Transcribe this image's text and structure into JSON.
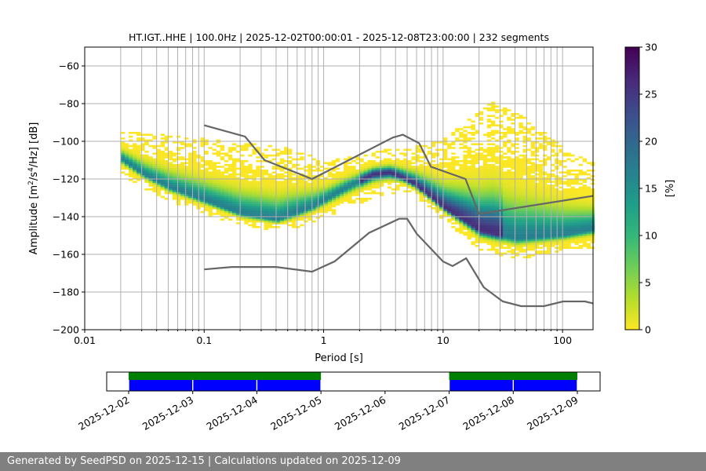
{
  "chart_data": {
    "type": "heatmap",
    "title": "HT.IGT..HHE | 100.0Hz | 2025-12-02T00:00:01 - 2025-12-08T23:00:00 | 232 segments",
    "xlabel": "Period [s]",
    "ylabel": "Amplitude [m²/s⁴/Hz] [dB]",
    "xscale": "log",
    "xlim": [
      0.01,
      180
    ],
    "ylim": [
      -200,
      -50
    ],
    "xticks": [
      {
        "v": 0.01,
        "label": "0.01"
      },
      {
        "v": 0.1,
        "label": "0.1"
      },
      {
        "v": 1,
        "label": "1"
      },
      {
        "v": 10,
        "label": "10"
      },
      {
        "v": 100,
        "label": "100"
      }
    ],
    "yticks": [
      -200,
      -180,
      -160,
      -140,
      -120,
      -100,
      -80,
      -60
    ],
    "grid": true,
    "colorbar": {
      "label": "[%]",
      "range": [
        0,
        30
      ],
      "ticks": [
        0,
        5,
        10,
        15,
        20,
        25,
        30
      ],
      "colormap": "viridis_r"
    },
    "density_mode": [
      [
        0.02,
        -110
      ],
      [
        0.03,
        -118
      ],
      [
        0.05,
        -125
      ],
      [
        0.1,
        -132
      ],
      [
        0.2,
        -139
      ],
      [
        0.4,
        -142
      ],
      [
        0.8,
        -135
      ],
      [
        1.5,
        -125
      ],
      [
        2.5,
        -118
      ],
      [
        3.5,
        -117
      ],
      [
        4.5,
        -120
      ],
      [
        5.5,
        -123
      ],
      [
        7,
        -128
      ],
      [
        10,
        -136
      ],
      [
        15,
        -143
      ],
      [
        20,
        -148
      ],
      [
        40,
        -152
      ],
      [
        100,
        -150
      ],
      [
        180,
        -147
      ]
    ],
    "density_upper": [
      [
        0.02,
        -96
      ],
      [
        0.1,
        -100
      ],
      [
        0.5,
        -105
      ],
      [
        1,
        -112
      ],
      [
        3,
        -106
      ],
      [
        5,
        -105
      ],
      [
        10,
        -100
      ],
      [
        25,
        -80
      ],
      [
        50,
        -90
      ],
      [
        100,
        -105
      ],
      [
        180,
        -113
      ]
    ],
    "density_lower": [
      [
        0.02,
        -118
      ],
      [
        0.05,
        -132
      ],
      [
        0.2,
        -145
      ],
      [
        0.5,
        -147
      ],
      [
        1,
        -140
      ],
      [
        3,
        -128
      ],
      [
        5,
        -126
      ],
      [
        10,
        -142
      ],
      [
        20,
        -158
      ],
      [
        40,
        -162
      ],
      [
        100,
        -158
      ],
      [
        180,
        -156
      ]
    ],
    "series": [
      {
        "name": "NHNM",
        "color": "#666666",
        "points": [
          [
            0.1,
            -91.5
          ],
          [
            0.22,
            -97.5
          ],
          [
            0.32,
            -110
          ],
          [
            0.8,
            -120
          ],
          [
            3.8,
            -98
          ],
          [
            4.6,
            -96.5
          ],
          [
            6.3,
            -101
          ],
          [
            7.9,
            -113.5
          ],
          [
            15.4,
            -120
          ],
          [
            20,
            -138.5
          ],
          [
            180,
            -129
          ]
        ]
      },
      {
        "name": "NLNM",
        "color": "#666666",
        "points": [
          [
            0.1,
            -168
          ],
          [
            0.17,
            -166.7
          ],
          [
            0.4,
            -166.7
          ],
          [
            0.8,
            -169.2
          ],
          [
            1.24,
            -163.7
          ],
          [
            2.4,
            -148.6
          ],
          [
            4.3,
            -141.1
          ],
          [
            5,
            -141.1
          ],
          [
            6,
            -149
          ],
          [
            10,
            -163.8
          ],
          [
            12,
            -166.2
          ],
          [
            15.6,
            -162.1
          ],
          [
            21.9,
            -177.5
          ],
          [
            31.6,
            -185
          ],
          [
            45,
            -187.5
          ],
          [
            70,
            -187.5
          ],
          [
            101,
            -185
          ],
          [
            154,
            -185
          ],
          [
            180,
            -186
          ]
        ]
      }
    ],
    "timeline": {
      "ticks": [
        "2025-12-02",
        "2025-12-03",
        "2025-12-04",
        "2025-12-05",
        "2025-12-06",
        "2025-12-07",
        "2025-12-08",
        "2025-12-09"
      ],
      "coverage_days": [
        [
          0,
          3
        ],
        [
          5,
          7
        ]
      ],
      "segments_days": [
        [
          0,
          1
        ],
        [
          1,
          2
        ],
        [
          2,
          3
        ],
        [
          5,
          6
        ],
        [
          6,
          7
        ]
      ],
      "coverage_color": "#008000",
      "segment_color": "#0000ff"
    }
  },
  "footer": "Generated by SeedPSD on 2025-12-15 | Calculations updated on 2025-12-09"
}
